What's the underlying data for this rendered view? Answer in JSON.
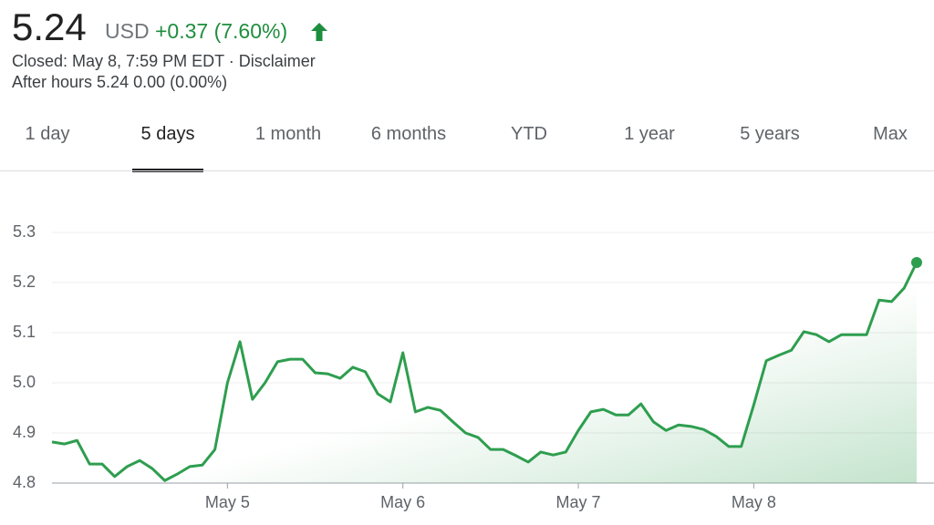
{
  "header": {
    "price": "5.24",
    "currency": "USD",
    "change": "+0.37 (7.60%)",
    "closed": "Closed: May 8, 7:59 PM EDT · Disclaimer",
    "after_hours": "After hours 5.24 0.00 (0.00%)"
  },
  "tabs": {
    "items": [
      "1 day",
      "5 days",
      "1 month",
      "6 months",
      "YTD",
      "1 year",
      "5 years",
      "Max"
    ],
    "selected": 1
  },
  "chart_data": {
    "type": "line",
    "categories": [
      null,
      null,
      null,
      null,
      null,
      null,
      null,
      null,
      null,
      null,
      null,
      null,
      null,
      null,
      "May 5",
      null,
      null,
      null,
      null,
      null,
      null,
      null,
      null,
      null,
      null,
      null,
      null,
      null,
      "May 6",
      null,
      null,
      null,
      null,
      null,
      null,
      null,
      null,
      null,
      null,
      null,
      null,
      null,
      "May 7",
      null,
      null,
      null,
      null,
      null,
      null,
      null,
      null,
      null,
      null,
      null,
      null,
      null,
      "May 8",
      null,
      null,
      null,
      null,
      null,
      null,
      null,
      null,
      null,
      null,
      null,
      null,
      null
    ],
    "series": [
      {
        "name": "Price",
        "color": "#2e9e4f",
        "values": [
          4.882,
          4.878,
          4.885,
          4.838,
          4.838,
          4.813,
          4.833,
          4.845,
          4.829,
          4.805,
          4.818,
          4.833,
          4.836,
          4.867,
          5.0,
          5.082,
          4.967,
          5.0,
          5.042,
          5.047,
          5.047,
          5.02,
          5.018,
          5.009,
          5.031,
          5.022,
          4.978,
          4.962,
          5.06,
          4.942,
          4.951,
          4.945,
          4.922,
          4.9,
          4.891,
          4.867,
          4.867,
          4.855,
          4.842,
          4.862,
          4.856,
          4.862,
          4.905,
          4.942,
          4.947,
          4.936,
          4.936,
          4.958,
          4.922,
          4.905,
          4.916,
          4.913,
          4.907,
          4.893,
          4.873,
          4.873,
          4.956,
          5.044,
          5.055,
          5.065,
          5.102,
          5.096,
          5.082,
          5.096,
          5.096,
          5.096,
          5.165,
          5.162,
          5.189,
          5.24
        ]
      }
    ],
    "ylim": [
      4.8,
      5.3
    ],
    "yticks": [
      4.8,
      4.9,
      {
        "value": 5,
        "label": "5.0"
      },
      5.1,
      5.2,
      5.3
    ],
    "grid": true
  }
}
